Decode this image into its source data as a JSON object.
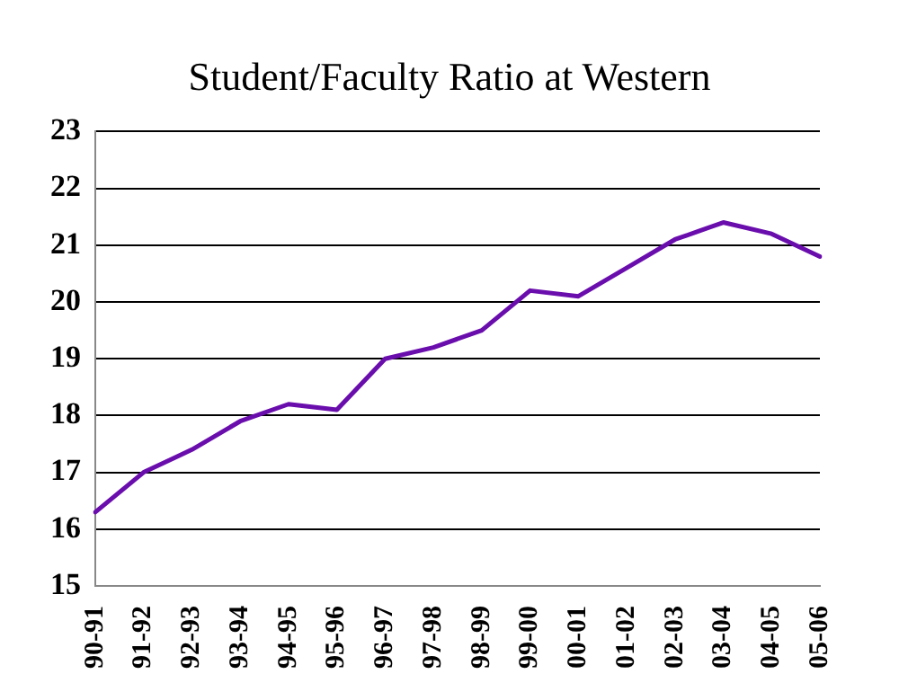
{
  "chart_data": {
    "type": "line",
    "title": "Student/Faculty Ratio at Western",
    "categories": [
      "90-91",
      "91-92",
      "92-93",
      "93-94",
      "94-95",
      "95-96",
      "96-97",
      "97-98",
      "98-99",
      "99-00",
      "00-01",
      "01-02",
      "02-03",
      "03-04",
      "04-05",
      "05-06"
    ],
    "series": [
      {
        "color": "#6a0dad",
        "values": [
          16.3,
          17.0,
          17.4,
          17.9,
          18.2,
          18.1,
          19.0,
          19.2,
          19.5,
          20.2,
          20.1,
          20.6,
          21.1,
          21.4,
          21.2,
          20.8
        ]
      }
    ],
    "ylim": [
      15,
      23
    ],
    "yticks": [
      15,
      16,
      17,
      18,
      19,
      20,
      21,
      22,
      23
    ],
    "grid": "y",
    "legend": false,
    "marker": "none",
    "line_style": "solid"
  }
}
